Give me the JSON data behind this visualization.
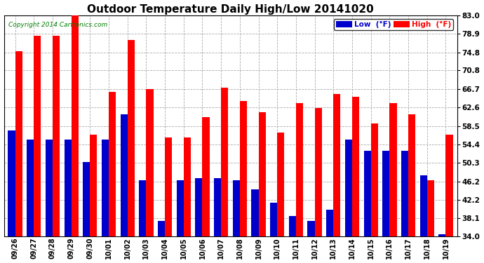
{
  "title": "Outdoor Temperature Daily High/Low 20141020",
  "copyright": "Copyright 2014 Cartronics.com",
  "dates": [
    "09/26",
    "09/27",
    "09/28",
    "09/29",
    "09/30",
    "10/01",
    "10/02",
    "10/03",
    "10/04",
    "10/05",
    "10/06",
    "10/07",
    "10/08",
    "10/09",
    "10/10",
    "10/11",
    "10/12",
    "10/13",
    "10/14",
    "10/15",
    "10/16",
    "10/17",
    "10/18",
    "10/19"
  ],
  "high": [
    75.0,
    78.5,
    78.5,
    83.0,
    56.5,
    66.0,
    77.5,
    66.7,
    56.0,
    56.0,
    60.5,
    67.0,
    64.0,
    61.5,
    57.0,
    63.5,
    62.5,
    65.5,
    65.0,
    59.0,
    63.5,
    61.0,
    46.5,
    56.5
  ],
  "low": [
    57.5,
    55.5,
    55.5,
    55.5,
    50.5,
    55.5,
    61.0,
    46.5,
    37.5,
    46.5,
    47.0,
    47.0,
    46.5,
    44.5,
    41.5,
    38.5,
    37.5,
    40.0,
    55.5,
    53.0,
    53.0,
    53.0,
    47.5,
    34.5
  ],
  "ylim": [
    34.0,
    83.0
  ],
  "yticks": [
    34.0,
    38.1,
    42.2,
    46.2,
    50.3,
    54.4,
    58.5,
    62.6,
    66.7,
    70.8,
    74.8,
    78.9,
    83.0
  ],
  "high_color": "#ff0000",
  "low_color": "#0000cc",
  "bg_color": "#ffffff",
  "grid_color": "#aaaaaa",
  "title_fontsize": 11,
  "bar_width": 0.38,
  "legend_low_label": "Low  (°F)",
  "legend_high_label": "High  (°F)"
}
